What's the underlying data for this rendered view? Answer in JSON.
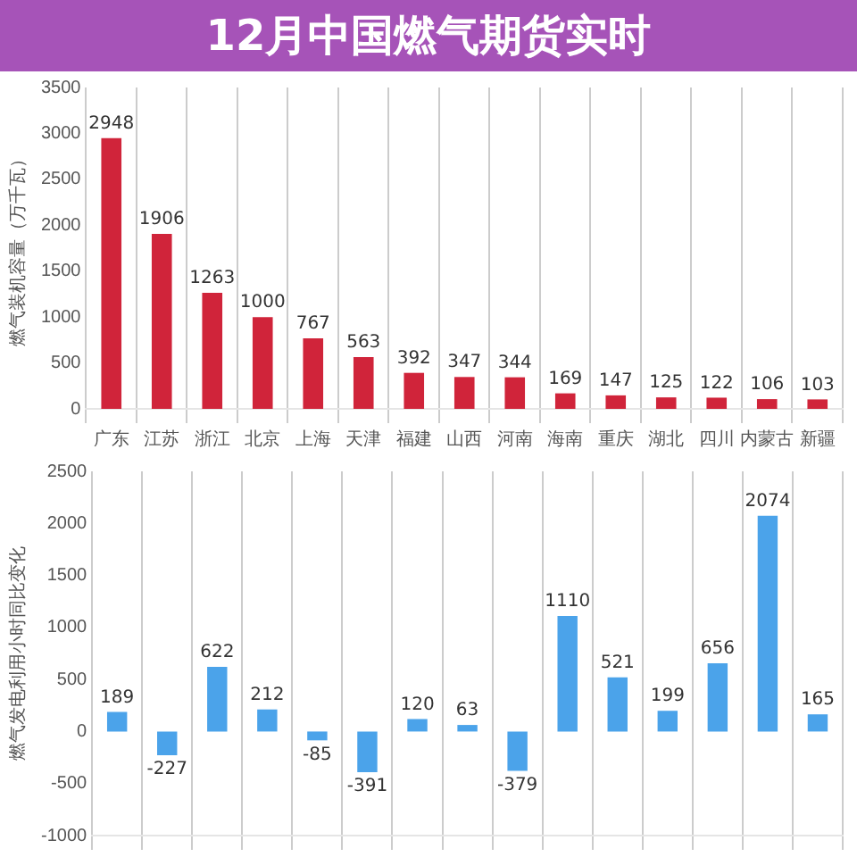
{
  "chart_data": [
    {
      "type": "bar",
      "title": "12月中国燃气期货实时",
      "ylabel": "燃气装机容量（万千瓦）",
      "categories": [
        "广东",
        "江苏",
        "浙江",
        "北京",
        "上海",
        "天津",
        "福建",
        "山西",
        "河南",
        "海南",
        "重庆",
        "湖北",
        "四川",
        "内蒙古",
        "新疆"
      ],
      "values": [
        2948,
        1906,
        1263,
        1000,
        767,
        563,
        392,
        347,
        344,
        169,
        147,
        125,
        122,
        106,
        103
      ],
      "color": "#d0243a",
      "ylim": [
        0,
        3500
      ],
      "yticks": [
        0,
        500,
        1000,
        1500,
        2000,
        2500,
        3000,
        3500
      ],
      "grid": "x",
      "data_labels": true
    },
    {
      "type": "bar",
      "ylabel": "燃气发电利用小时同比变化",
      "categories": [
        null,
        null,
        null,
        null,
        null,
        null,
        null,
        null,
        null,
        null,
        null,
        null,
        null,
        null,
        null
      ],
      "values": [
        189,
        -227,
        622,
        212,
        -85,
        -391,
        120,
        63,
        -379,
        1110,
        521,
        199,
        656,
        2074,
        165
      ],
      "color": "#4ba3ea",
      "ylim": [
        -1000,
        2500
      ],
      "yticks": [
        -1000,
        -500,
        0,
        500,
        1000,
        1500,
        2000,
        2500
      ],
      "grid": "x",
      "data_labels": true,
      "tick_labels": "y"
    }
  ]
}
